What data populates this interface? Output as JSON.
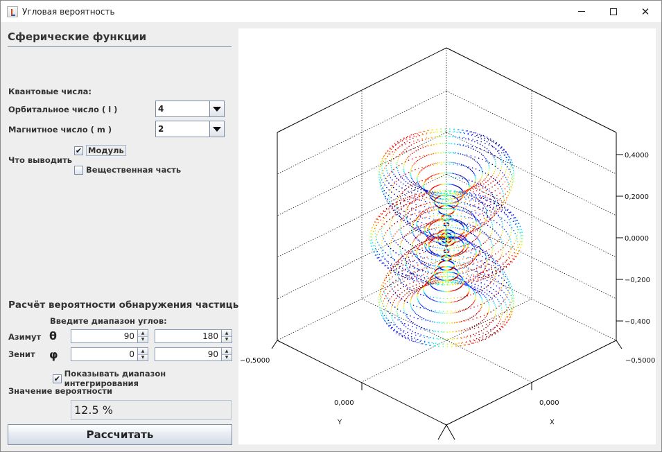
{
  "window": {
    "title": "Угловая вероятность"
  },
  "left_panel": {
    "title": "Сферические функции",
    "quantum_numbers_label": "Квантовые числа:",
    "orbital_label": "Орбитальное число ( l )",
    "orbital_value": "4",
    "magnetic_label": "Магнитное число ( m )",
    "magnetic_value": "2",
    "output_label": "Что выводить",
    "checkbox_modulus": {
      "label": "Модуль",
      "checked": true
    },
    "checkbox_real": {
      "label": "Вещественная часть",
      "checked": false
    },
    "probability_title": "Расчёт вероятности обнаружения частицы",
    "angle_range_label": "Введите диапазон углов:",
    "azimuth_label": "Азимут",
    "azimuth_symbol": "θ",
    "azimuth_from": "90",
    "azimuth_to": "180",
    "zenith_label": "Зенит",
    "zenith_symbol": "φ",
    "zenith_from": "0",
    "zenith_to": "90",
    "show_range_checkbox": {
      "label": "Показывать диапазон интегрирования",
      "checked": true
    },
    "probability_value_label": "Значение вероятности",
    "probability_value": "12.5 %",
    "calculate_button": "Рассчитать"
  },
  "plot": {
    "z_ticks": [
      "0,4000",
      "0,2000",
      "0,0000",
      "−0,200",
      "−0,400"
    ],
    "left_x_tick": "−0,5000",
    "right_x_tick": "−0,5000",
    "y_axis_tick": "0,000",
    "x_axis_tick": "0,000",
    "y_axis_name": "Y",
    "x_axis_name": "X",
    "surface": {
      "l": 4,
      "m": 2,
      "mode": "modulus",
      "colormap": "jet"
    }
  }
}
